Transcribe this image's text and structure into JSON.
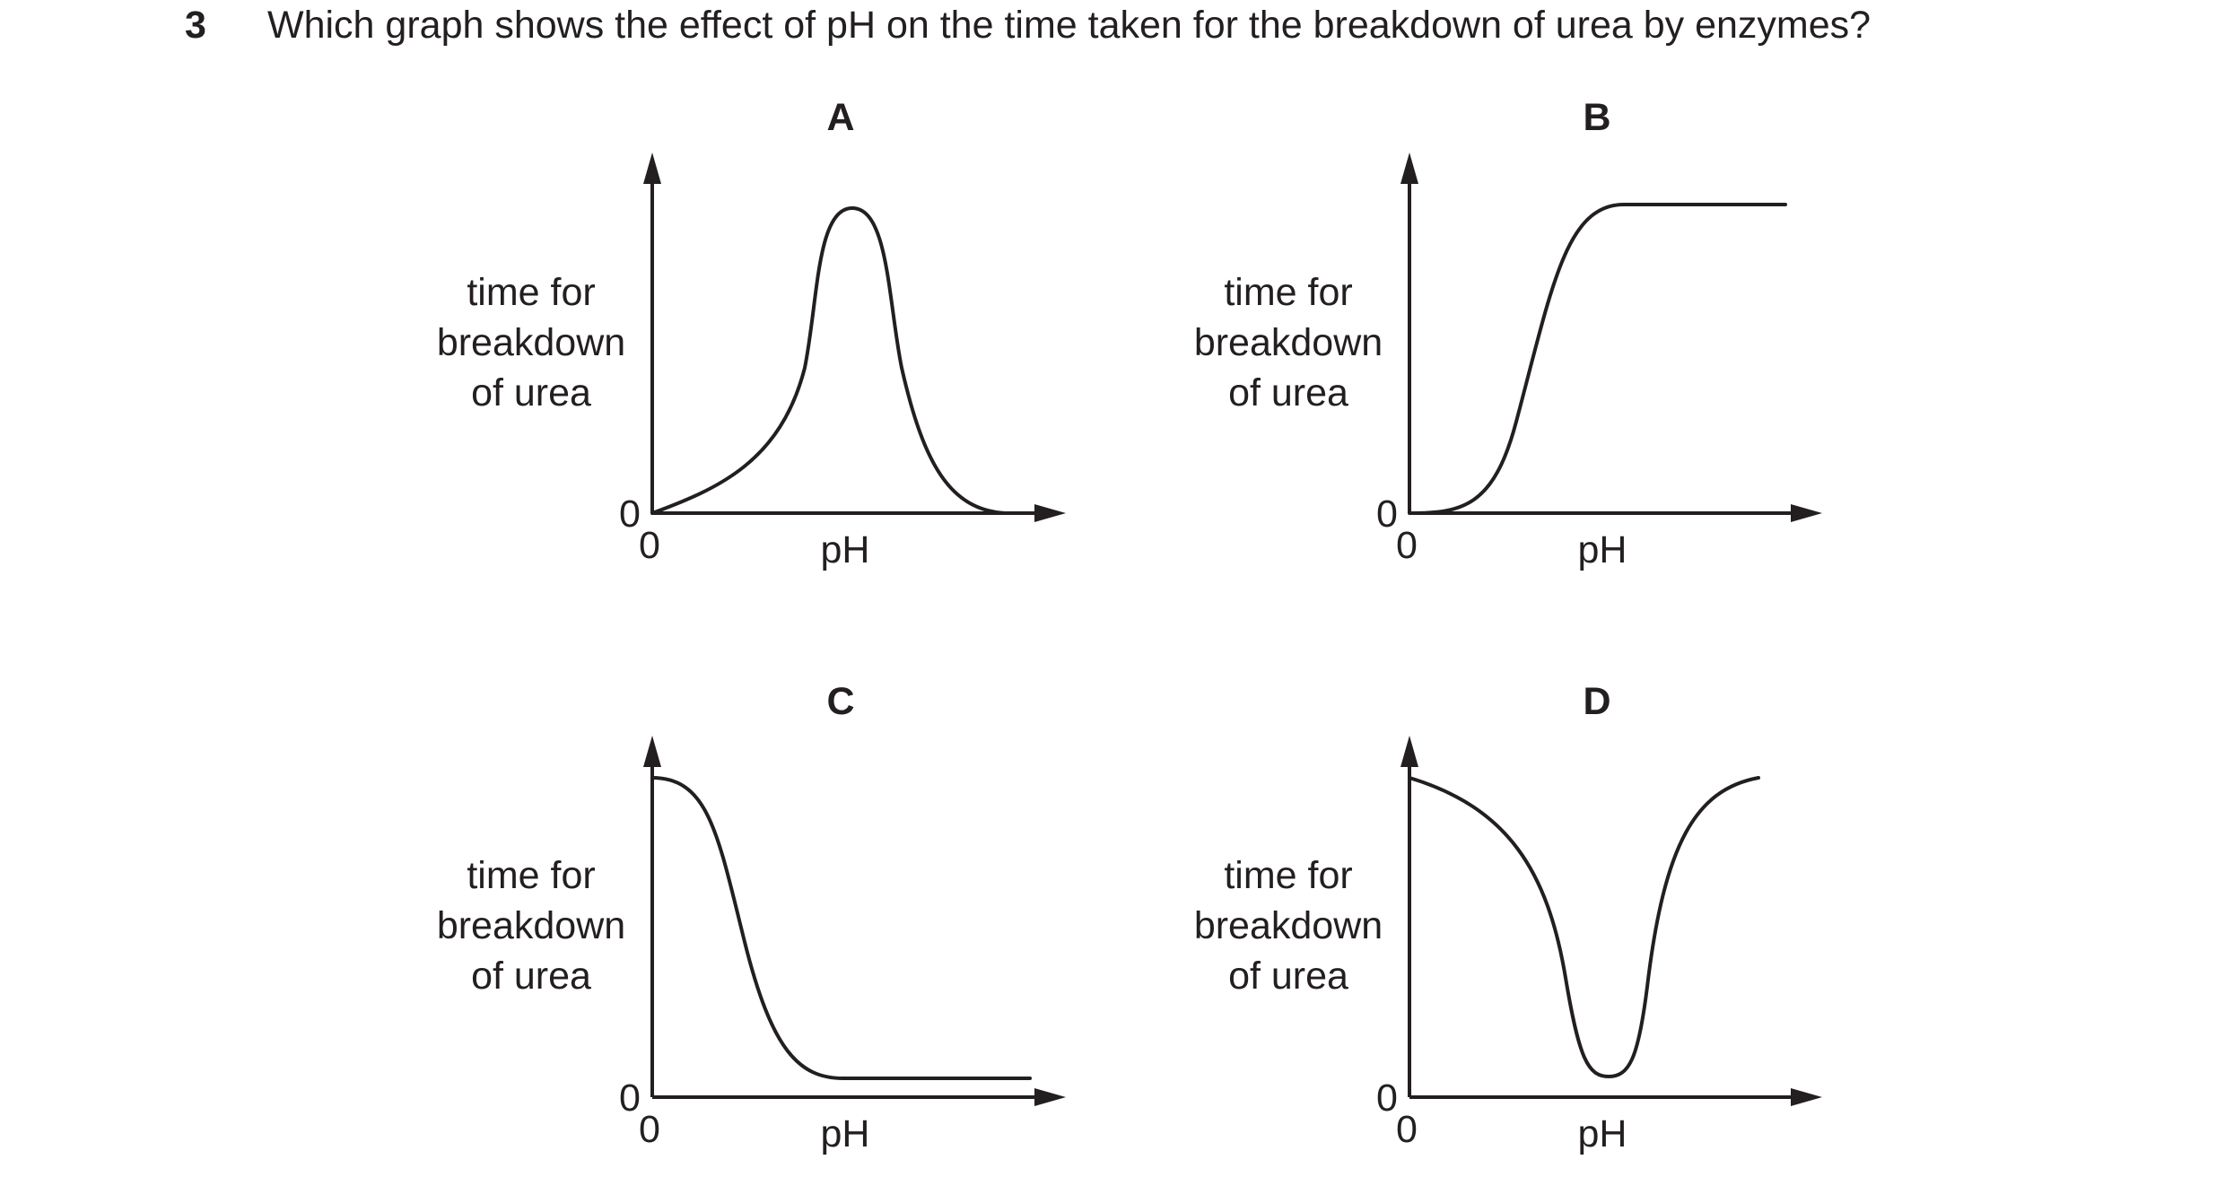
{
  "question": {
    "number": "3",
    "text": "Which graph shows the effect of pH on the time taken for the breakdown of urea by enzymes?"
  },
  "graphs": [
    {
      "letter": "A",
      "y_label_lines": [
        "time for",
        "breakdown",
        "of urea"
      ],
      "y_origin": "0",
      "x_origin": "0",
      "x_label": "pH",
      "curve_shape": "peak"
    },
    {
      "letter": "B",
      "y_label_lines": [
        "time for",
        "breakdown",
        "of urea"
      ],
      "y_origin": "0",
      "x_origin": "0",
      "x_label": "pH",
      "curve_shape": "rising-s-curve-plateau"
    },
    {
      "letter": "C",
      "y_label_lines": [
        "time for",
        "breakdown",
        "of urea"
      ],
      "y_origin": "0",
      "x_origin": "0",
      "x_label": "pH",
      "curve_shape": "falling-s-curve-plateau"
    },
    {
      "letter": "D",
      "y_label_lines": [
        "time for",
        "breakdown",
        "of urea"
      ],
      "y_origin": "0",
      "x_origin": "0",
      "x_label": "pH",
      "curve_shape": "trough"
    }
  ]
}
